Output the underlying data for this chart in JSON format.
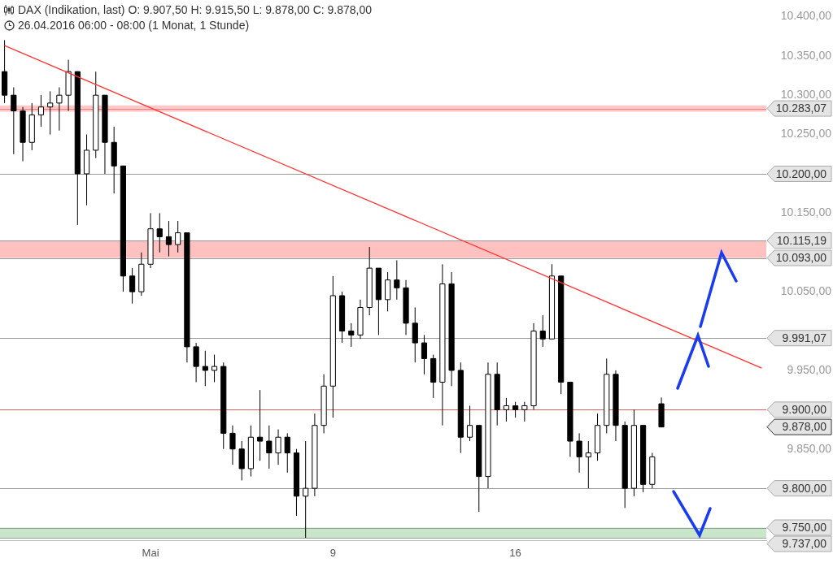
{
  "chart_data": {
    "type": "candlestick",
    "title": "DAX (Indikation, last)  O: 9.907,50  H: 9.915,50  L: 9.878,00  C: 9.878,00",
    "subtitle": "26.04.2016 06:00 - 08:00 (1 Monat, 1 Stunde)",
    "categories": [
      null,
      null,
      null,
      null,
      null,
      null,
      null,
      null,
      null,
      null,
      null,
      null,
      null,
      null,
      null,
      null,
      "Mai",
      null,
      null,
      null,
      null,
      null,
      null,
      null,
      null,
      null,
      null,
      null,
      null,
      null,
      null,
      null,
      null,
      null,
      null,
      null,
      "9",
      null,
      null,
      null,
      null,
      null,
      null,
      null,
      null,
      null,
      null,
      null,
      null,
      null,
      null,
      null,
      null,
      null,
      null,
      null,
      "16",
      null,
      null,
      null,
      null,
      null,
      null,
      null,
      null,
      null,
      null,
      null,
      null,
      null,
      null,
      null,
      null,
      null,
      null,
      null,
      null,
      null,
      null,
      null,
      null,
      null,
      null,
      null
    ],
    "colors": [
      "#000000",
      "#000000",
      "#000000",
      "#ffffff",
      "#ffffff",
      "#ffffff",
      "#ffffff",
      "#ffffff",
      "#000000",
      "#ffffff",
      "#ffffff",
      "#000000",
      "#000000",
      "#000000",
      "#000000",
      "#ffffff",
      "#ffffff",
      "#000000",
      "#000000",
      "#ffffff",
      "#000000",
      "#000000",
      "#000000",
      "#ffffff",
      "#000000",
      "#000000",
      "#000000",
      "#ffffff",
      "#000000",
      "#000000",
      "#ffffff",
      "#000000",
      "#000000",
      "#ffffff",
      "#ffffff",
      "#ffffff",
      "#ffffff",
      "#000000",
      "#000000",
      "#ffffff",
      "#ffffff",
      "#000000",
      "#ffffff",
      "#000000",
      "#000000",
      "#000000",
      "#000000",
      "#000000",
      "#ffffff",
      "#000000",
      "#000000",
      "#ffffff",
      "#000000",
      "#ffffff",
      "#000000",
      "#ffffff",
      "#000000",
      "#ffffff",
      "#ffffff",
      "#000000",
      "#ffffff",
      "#000000",
      "#000000",
      "#000000",
      "#ffffff",
      "#ffffff",
      "#ffffff",
      "#000000",
      "#000000",
      "#ffffff",
      "#000000",
      "#ffffff",
      "#000000",
      null,
      null,
      null,
      null,
      null,
      null,
      null,
      null,
      null,
      null,
      null
    ],
    "ohlc": [
      [
        10330,
        10370,
        10290,
        10300
      ],
      [
        10300,
        10310,
        10225,
        10280
      ],
      [
        10280,
        10285,
        10216,
        10240
      ],
      [
        10240,
        10290,
        10230,
        10275
      ],
      [
        10275,
        10300,
        10260,
        10285
      ],
      [
        10285,
        10305,
        10250,
        10290
      ],
      [
        10290,
        10310,
        10255,
        10300
      ],
      [
        10300,
        10345,
        10280,
        10330
      ],
      [
        10330,
        10330,
        10135,
        10200
      ],
      [
        10200,
        10250,
        10160,
        10230
      ],
      [
        10230,
        10330,
        10220,
        10300
      ],
      [
        10300,
        10300,
        10200,
        10240
      ],
      [
        10240,
        10260,
        10175,
        10210
      ],
      [
        10210,
        10210,
        10050,
        10070
      ],
      [
        10070,
        10080,
        10035,
        10050
      ],
      [
        10050,
        10100,
        10045,
        10085
      ],
      [
        10085,
        10150,
        10080,
        10130
      ],
      [
        10130,
        10150,
        10100,
        10120
      ],
      [
        10120,
        10140,
        10095,
        10110
      ],
      [
        10110,
        10140,
        10100,
        10125
      ],
      [
        10125,
        10125,
        9960,
        9980
      ],
      [
        9980,
        9985,
        9935,
        9955
      ],
      [
        9955,
        9975,
        9930,
        9950
      ],
      [
        9950,
        9970,
        9935,
        9955
      ],
      [
        9955,
        9960,
        9850,
        9870
      ],
      [
        9870,
        9880,
        9830,
        9850
      ],
      [
        9850,
        9860,
        9810,
        9825
      ],
      [
        9825,
        9880,
        9815,
        9865
      ],
      [
        9865,
        9925,
        9835,
        9860
      ],
      [
        9860,
        9880,
        9825,
        9845
      ],
      [
        9845,
        9875,
        9830,
        9865
      ],
      [
        9865,
        9870,
        9820,
        9845
      ],
      [
        9845,
        9850,
        9765,
        9790
      ],
      [
        9790,
        9860,
        9737,
        9800
      ],
      [
        9800,
        9895,
        9790,
        9880
      ],
      [
        9880,
        9945,
        9870,
        9930
      ],
      [
        9930,
        10070,
        9890,
        10045
      ],
      [
        10045,
        10050,
        9985,
        10000
      ],
      [
        10000,
        10010,
        9980,
        9995
      ],
      [
        9995,
        10040,
        9990,
        10030
      ],
      [
        10030,
        10107,
        10020,
        10080
      ],
      [
        10080,
        10080,
        9995,
        10040
      ],
      [
        10040,
        10075,
        10025,
        10065
      ],
      [
        10065,
        10090,
        10040,
        10055
      ],
      [
        10055,
        10065,
        9995,
        10010
      ],
      [
        10010,
        10030,
        9960,
        9985
      ],
      [
        9985,
        9995,
        9945,
        9965
      ],
      [
        9965,
        9970,
        9915,
        9935
      ],
      [
        9935,
        10085,
        9880,
        10060
      ],
      [
        10060,
        10075,
        9930,
        9950
      ],
      [
        9950,
        9960,
        9845,
        9865
      ],
      [
        9865,
        9905,
        9860,
        9880
      ],
      [
        9880,
        9880,
        9770,
        9815
      ],
      [
        9815,
        9960,
        9800,
        9945
      ],
      [
        9945,
        9960,
        9880,
        9900
      ],
      [
        9900,
        9915,
        9885,
        9905
      ],
      [
        9905,
        9910,
        9890,
        9900
      ],
      [
        9900,
        9910,
        9885,
        9905
      ],
      [
        9905,
        10010,
        9900,
        10000
      ],
      [
        10000,
        10020,
        9980,
        9990
      ],
      [
        9990,
        10085,
        9990,
        10070
      ],
      [
        10070,
        10070,
        9920,
        9935
      ],
      [
        9935,
        9935,
        9840,
        9860
      ],
      [
        9860,
        9870,
        9820,
        9840
      ],
      [
        9840,
        9860,
        9800,
        9845
      ],
      [
        9845,
        9895,
        9835,
        9880
      ],
      [
        9880,
        9965,
        9870,
        9945
      ],
      [
        9945,
        9950,
        9860,
        9880
      ],
      [
        9880,
        9885,
        9775,
        9800
      ],
      [
        9800,
        9900,
        9790,
        9880
      ],
      [
        9880,
        9880,
        9795,
        9805
      ],
      [
        9805,
        9845,
        9800,
        9840
      ],
      [
        9907.5,
        9915.5,
        9878,
        9878
      ],
      null,
      null,
      null,
      null,
      null,
      null,
      null,
      null,
      null,
      null,
      null
    ],
    "series": [
      {
        "type": "line",
        "color": "#ff3333",
        "values": [
          10363,
          null,
          null,
          null,
          null,
          null,
          null,
          null,
          null,
          null,
          null,
          null,
          null,
          null,
          null,
          null,
          null,
          null,
          null,
          null,
          null,
          null,
          null,
          null,
          null,
          null,
          null,
          null,
          null,
          null,
          null,
          null,
          null,
          null,
          null,
          null,
          null,
          null,
          null,
          null,
          null,
          null,
          null,
          null,
          null,
          null,
          null,
          null,
          null,
          null,
          null,
          null,
          null,
          null,
          null,
          null,
          null,
          null,
          null,
          null,
          null,
          null,
          null,
          null,
          null,
          null,
          null,
          null,
          null,
          null,
          null,
          null,
          null,
          null,
          null,
          null,
          null,
          null,
          null,
          null,
          null,
          null,
          null,
          9953
        ]
      }
    ],
    "ylim": [
      9734,
      10400
    ],
    "yticks": [
      {
        "value": 10400,
        "label": "10.400,00"
      },
      {
        "value": 10350,
        "label": "10.350,00"
      },
      {
        "value": 10300,
        "label": "10.300,00"
      },
      {
        "value": 10250,
        "label": "10.250,00"
      },
      {
        "value": 10150,
        "label": "10.150,00"
      },
      {
        "value": 10050,
        "label": "10.050,00"
      },
      {
        "value": 9950,
        "label": "9.950,00"
      },
      {
        "value": 9850,
        "label": "9.850,00"
      }
    ],
    "ref_lines": [
      {
        "axis": "y",
        "value": 10283.07,
        "label": "10.283,07",
        "color": "#f08080"
      },
      {
        "axis": "y",
        "value": 10200,
        "label": "10.200,00",
        "color": "#999999"
      },
      {
        "axis": "y",
        "value": 10115.19,
        "label": "10.115,19",
        "color": "#999999"
      },
      {
        "axis": "y",
        "value": 10093,
        "label": "10.093,00",
        "color": "#999999"
      },
      {
        "axis": "y",
        "value": 9991.07,
        "label": "9.991,07",
        "color": "#999999"
      },
      {
        "axis": "y",
        "value": 9900,
        "label": "9.900,00",
        "color": "#e06060"
      },
      {
        "axis": "y",
        "value": 9800,
        "label": "9.800,00",
        "color": "#999999"
      },
      {
        "axis": "y",
        "value": 9750,
        "label": "9.750,00",
        "color": "#999999"
      },
      {
        "axis": "y",
        "value": 9737,
        "label": "9.737,00",
        "color": "#999999"
      }
    ],
    "bands": [
      {
        "axis": "y",
        "from": 10279,
        "to": 10287,
        "color": "#ffc8c8"
      },
      {
        "axis": "y",
        "from": 10093,
        "to": 10115.19,
        "color": "#ffc0c0"
      },
      {
        "axis": "y",
        "from": 9737,
        "to": 9750,
        "color": "#c8e6c9"
      }
    ],
    "annotations": [
      "9.878,00"
    ],
    "grid": false,
    "legend": false,
    "marker": "none"
  }
}
